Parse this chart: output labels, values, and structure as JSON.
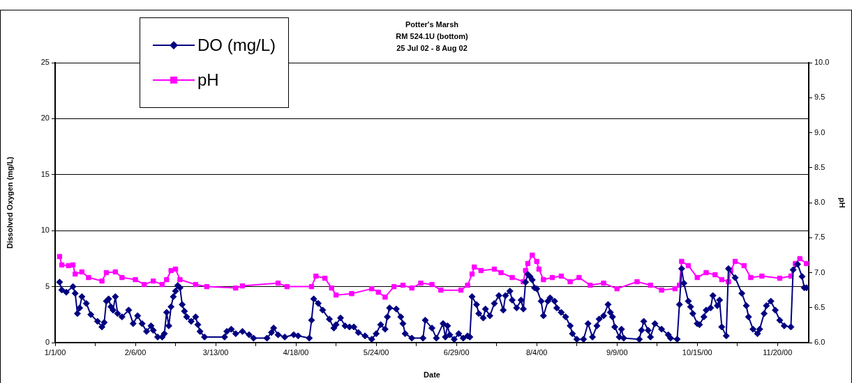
{
  "chart_data": {
    "type": "line",
    "title": "Potter's Marsh",
    "subtitle": "RM 524.1U (bottom)\n25 Jul 02 - 8 Aug 02",
    "xlabel": "Date",
    "ylabel": "Dissolved Oxygen (mg/L)",
    "y2label": "pH",
    "xlim": [
      "2000-01-01",
      "2000-12-04"
    ],
    "xticks": [
      {
        "value": "2000-01-01",
        "label": "1/1/00"
      },
      {
        "value": "2000-01-19",
        "label": null
      },
      {
        "value": "2000-02-06",
        "label": "2/6/00"
      },
      {
        "value": "2000-02-24",
        "label": null
      },
      {
        "value": "2000-03-13",
        "label": "3/13/00"
      },
      {
        "value": "2000-03-31",
        "label": null
      },
      {
        "value": "2000-04-18",
        "label": "4/18/00"
      },
      {
        "value": "2000-05-06",
        "label": null
      },
      {
        "value": "2000-05-24",
        "label": "5/24/00"
      },
      {
        "value": "2000-06-11",
        "label": null
      },
      {
        "value": "2000-06-29",
        "label": "6/29/00"
      },
      {
        "value": "2000-07-17",
        "label": null
      },
      {
        "value": "2000-08-04",
        "label": "8/4/00"
      },
      {
        "value": "2000-08-22",
        "label": null
      },
      {
        "value": "2000-09-09",
        "label": "9/9/00"
      },
      {
        "value": "2000-09-27",
        "label": null
      },
      {
        "value": "2000-10-15",
        "label": "10/15/00"
      },
      {
        "value": "2000-11-02",
        "label": null
      },
      {
        "value": "2000-11-20",
        "label": "11/20/00"
      }
    ],
    "ylim": [
      0,
      25
    ],
    "yticks": [
      0,
      5,
      10,
      15,
      20,
      25
    ],
    "y2lim": [
      6,
      10
    ],
    "y2ticks": [
      {
        "value": 6,
        "label": "6.0"
      },
      {
        "value": 6.5,
        "label": "6.5"
      },
      {
        "value": 7,
        "label": "7.0"
      },
      {
        "value": 7.5,
        "label": "7.5"
      },
      {
        "value": 8,
        "label": "8.0"
      },
      {
        "value": 8.5,
        "label": "8.5"
      },
      {
        "value": 9,
        "label": "9.0"
      },
      {
        "value": 9.5,
        "label": "9.5"
      },
      {
        "value": 10,
        "label": "10.0"
      }
    ],
    "grid": "y",
    "legend": "top left",
    "series": [
      {
        "name": "DO (mg/L)",
        "color": "#000080",
        "marker": "diamond",
        "x": [
          "2000-01-03",
          "2000-01-04",
          "2000-01-06",
          "2000-01-09",
          "2000-01-10",
          "2000-01-11",
          "2000-01-12",
          "2000-01-13",
          "2000-01-15",
          "2000-01-17",
          "2000-01-20",
          "2000-01-22",
          "2000-01-23",
          "2000-01-24",
          "2000-01-25",
          "2000-01-26",
          "2000-01-27",
          "2000-01-28",
          "2000-01-29",
          "2000-01-31",
          "2000-02-03",
          "2000-02-05",
          "2000-02-07",
          "2000-02-09",
          "2000-02-11",
          "2000-02-13",
          "2000-02-14",
          "2000-02-16",
          "2000-02-18",
          "2000-02-19",
          "2000-02-20",
          "2000-02-21",
          "2000-02-22",
          "2000-02-23",
          "2000-02-24",
          "2000-02-25",
          "2000-02-26",
          "2000-02-27",
          "2000-02-28",
          "2000-02-29",
          "2000-03-02",
          "2000-03-04",
          "2000-03-05",
          "2000-03-06",
          "2000-03-08",
          "2000-03-17",
          "2000-03-18",
          "2000-03-20",
          "2000-03-22",
          "2000-03-25",
          "2000-03-28",
          "2000-03-30",
          "2000-04-05",
          "2000-04-07",
          "2000-04-08",
          "2000-04-10",
          "2000-04-13",
          "2000-04-17",
          "2000-04-19",
          "2000-04-24",
          "2000-04-25",
          "2000-04-26",
          "2000-04-28",
          "2000-04-30",
          "2000-05-03",
          "2000-05-05",
          "2000-05-06",
          "2000-05-08",
          "2000-05-10",
          "2000-05-12",
          "2000-05-14",
          "2000-05-16",
          "2000-05-19",
          "2000-05-22",
          "2000-05-24",
          "2000-05-26",
          "2000-05-28",
          "2000-05-29",
          "2000-05-30",
          "2000-06-02",
          "2000-06-04",
          "2000-06-05",
          "2000-06-06",
          "2000-06-09",
          "2000-06-14",
          "2000-06-15",
          "2000-06-18",
          "2000-06-20",
          "2000-06-23",
          "2000-06-24",
          "2000-06-25",
          "2000-06-26",
          "2000-06-28",
          "2000-06-30",
          "2000-07-02",
          "2000-07-04",
          "2000-07-05",
          "2000-07-06",
          "2000-07-08",
          "2000-07-09",
          "2000-07-11",
          "2000-07-12",
          "2000-07-14",
          "2000-07-16",
          "2000-07-18",
          "2000-07-20",
          "2000-07-21",
          "2000-07-23",
          "2000-07-24",
          "2000-07-26",
          "2000-07-28",
          "2000-07-29",
          "2000-07-30",
          "2000-07-31",
          "2000-08-01",
          "2000-08-02",
          "2000-08-03",
          "2000-08-04",
          "2000-08-06",
          "2000-08-07",
          "2000-08-09",
          "2000-08-10",
          "2000-08-12",
          "2000-08-13",
          "2000-08-15",
          "2000-08-17",
          "2000-08-19",
          "2000-08-20",
          "2000-08-22",
          "2000-08-25",
          "2000-08-27",
          "2000-08-29",
          "2000-08-31",
          "2000-09-01",
          "2000-09-03",
          "2000-09-05",
          "2000-09-06",
          "2000-09-07",
          "2000-09-08",
          "2000-09-10",
          "2000-09-11",
          "2000-09-12",
          "2000-09-19",
          "2000-09-20",
          "2000-09-21",
          "2000-09-23",
          "2000-09-24",
          "2000-09-26",
          "2000-09-29",
          "2000-10-02",
          "2000-10-03",
          "2000-10-06",
          "2000-10-07",
          "2000-10-08",
          "2000-10-09",
          "2000-10-11",
          "2000-10-12",
          "2000-10-13",
          "2000-10-15",
          "2000-10-16",
          "2000-10-18",
          "2000-10-19",
          "2000-10-21",
          "2000-10-22",
          "2000-10-24",
          "2000-10-25",
          "2000-10-26",
          "2000-10-28",
          "2000-10-29",
          "2000-11-01",
          "2000-11-04",
          "2000-11-06",
          "2000-11-07",
          "2000-11-09",
          "2000-11-11",
          "2000-11-12",
          "2000-11-14",
          "2000-11-15",
          "2000-11-17",
          "2000-11-19",
          "2000-11-21",
          "2000-11-23",
          "2000-11-26",
          "2000-11-27",
          "2000-11-29",
          "2000-12-01",
          "2000-12-02",
          "2000-12-03"
        ],
        "values": [
          5.4,
          4.7,
          4.5,
          5.0,
          4.4,
          2.6,
          3.1,
          4.1,
          3.5,
          2.5,
          1.9,
          1.4,
          1.8,
          3.7,
          3.9,
          3.2,
          2.9,
          4.1,
          2.6,
          2.3,
          2.9,
          1.7,
          2.4,
          1.7,
          1.0,
          1.5,
          1.1,
          0.5,
          0.5,
          0.8,
          2.7,
          1.5,
          3.2,
          4.1,
          4.6,
          5.1,
          4.9,
          3.4,
          2.8,
          2.3,
          1.9,
          2.3,
          1.6,
          1.0,
          0.5,
          0.5,
          1.0,
          1.2,
          0.8,
          1.0,
          0.7,
          0.4,
          0.4,
          0.9,
          1.3,
          0.7,
          0.5,
          0.7,
          0.6,
          0.4,
          2.0,
          3.9,
          3.5,
          2.9,
          2.1,
          1.3,
          1.6,
          2.2,
          1.5,
          1.4,
          1.4,
          0.9,
          0.6,
          0.3,
          0.8,
          1.6,
          1.2,
          2.3,
          3.1,
          3.0,
          2.3,
          1.7,
          0.8,
          0.4,
          0.4,
          2.0,
          1.3,
          0.4,
          1.7,
          0.5,
          1.5,
          0.7,
          0.3,
          0.8,
          0.4,
          0.6,
          0.5,
          4.1,
          3.4,
          2.6,
          2.2,
          3.0,
          2.4,
          3.5,
          4.2,
          2.9,
          4.2,
          4.6,
          3.8,
          3.1,
          3.8,
          3.0,
          5.4,
          6.1,
          5.9,
          5.6,
          4.9,
          4.8,
          3.7,
          2.4,
          3.7,
          4.0,
          3.7,
          3.1,
          2.7,
          2.3,
          1.5,
          0.8,
          0.3,
          0.3,
          1.7,
          0.5,
          1.5,
          2.1,
          2.4,
          3.4,
          2.7,
          2.3,
          1.4,
          0.5,
          1.2,
          0.4,
          0.3,
          1.1,
          1.9,
          1.1,
          0.5,
          1.7,
          1.2,
          0.7,
          0.4,
          0.3,
          3.4,
          6.6,
          5.3,
          3.7,
          3.2,
          2.6,
          1.7,
          1.6,
          2.3,
          2.9,
          3.1,
          4.2,
          3.3,
          3.8,
          1.4,
          0.6,
          6.6,
          5.8,
          4.4,
          3.3,
          2.3,
          1.2,
          0.8,
          1.2,
          2.6,
          3.3,
          3.7,
          2.9,
          2.0,
          1.5,
          1.4,
          6.5,
          7.0,
          5.9,
          4.9,
          4.9
        ]
      },
      {
        "name": "pH",
        "color": "#ff00ff",
        "marker": "square",
        "axis": "y2",
        "x": [
          "2000-01-03",
          "2000-01-04",
          "2000-01-07",
          "2000-01-09",
          "2000-01-10",
          "2000-01-13",
          "2000-01-16",
          "2000-01-22",
          "2000-01-24",
          "2000-01-28",
          "2000-01-31",
          "2000-02-06",
          "2000-02-10",
          "2000-02-14",
          "2000-02-18",
          "2000-02-20",
          "2000-02-22",
          "2000-02-24",
          "2000-02-26",
          "2000-03-04",
          "2000-03-09",
          "2000-03-22",
          "2000-03-25",
          "2000-04-10",
          "2000-04-14",
          "2000-04-25",
          "2000-04-27",
          "2000-05-01",
          "2000-05-04",
          "2000-05-06",
          "2000-05-13",
          "2000-05-22",
          "2000-05-25",
          "2000-05-28",
          "2000-06-01",
          "2000-06-05",
          "2000-06-09",
          "2000-06-13",
          "2000-06-18",
          "2000-06-22",
          "2000-07-01",
          "2000-07-04",
          "2000-07-06",
          "2000-07-07",
          "2000-07-10",
          "2000-07-16",
          "2000-07-19",
          "2000-07-24",
          "2000-07-29",
          "2000-07-30",
          "2000-07-31",
          "2000-08-02",
          "2000-08-04",
          "2000-08-05",
          "2000-08-07",
          "2000-08-11",
          "2000-08-15",
          "2000-08-19",
          "2000-08-23",
          "2000-08-28",
          "2000-09-03",
          "2000-09-09",
          "2000-09-18",
          "2000-09-24",
          "2000-09-29",
          "2000-10-05",
          "2000-10-07",
          "2000-10-08",
          "2000-10-11",
          "2000-10-15",
          "2000-10-19",
          "2000-10-23",
          "2000-10-26",
          "2000-10-29",
          "2000-10-30",
          "2000-11-01",
          "2000-11-05",
          "2000-11-08",
          "2000-11-13",
          "2000-11-21",
          "2000-11-26",
          "2000-11-28",
          "2000-11-30",
          "2000-12-03"
        ],
        "values": [
          7.23,
          7.11,
          7.1,
          7.11,
          6.98,
          7.01,
          6.93,
          6.88,
          7.0,
          7.01,
          6.93,
          6.9,
          6.83,
          6.88,
          6.83,
          6.9,
          7.03,
          7.05,
          6.9,
          6.83,
          6.8,
          6.78,
          6.81,
          6.85,
          6.8,
          6.8,
          6.95,
          6.92,
          6.78,
          6.68,
          6.7,
          6.77,
          6.72,
          6.65,
          6.8,
          6.82,
          6.78,
          6.85,
          6.83,
          6.75,
          6.75,
          6.82,
          6.98,
          7.08,
          7.03,
          7.05,
          7.0,
          6.93,
          6.87,
          7.03,
          7.13,
          7.25,
          7.16,
          7.05,
          6.9,
          6.93,
          6.95,
          6.87,
          6.93,
          6.82,
          6.85,
          6.77,
          6.87,
          6.82,
          6.75,
          6.77,
          6.82,
          7.16,
          7.1,
          6.93,
          7.0,
          6.97,
          6.9,
          6.87,
          7.03,
          7.16,
          7.1,
          6.93,
          6.95,
          6.92,
          6.95,
          7.13,
          7.2,
          7.13
        ]
      }
    ]
  }
}
